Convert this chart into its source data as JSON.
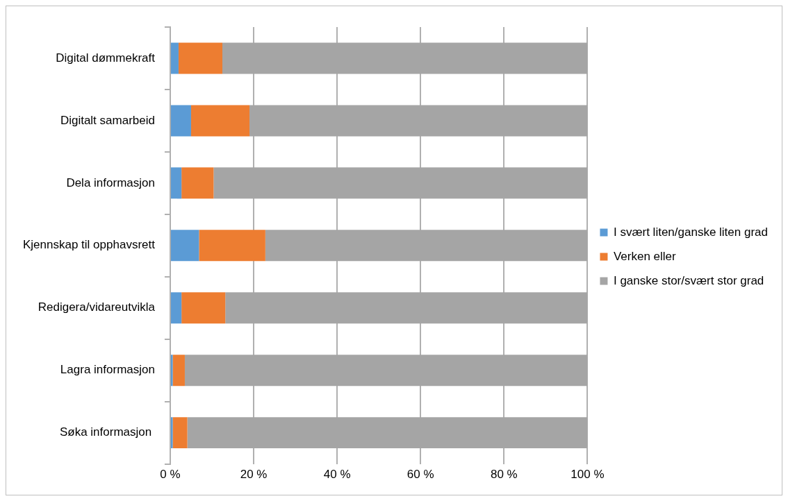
{
  "chart_data": {
    "type": "bar",
    "orientation": "horizontal",
    "stacked": true,
    "categories": [
      "Digital dømmekraft",
      "Digitalt samarbeid",
      "Dela informasjon",
      "Kjennskap til opphavsrett",
      "Redigera/vidareutvikla",
      "Lagra informasjon",
      "Søka informasjon "
    ],
    "series": [
      {
        "name": "I svært liten/ganske liten grad",
        "color": "#5b9bd5",
        "values": [
          2,
          5,
          2.7,
          6.9,
          2.7,
          0.6,
          0.6
        ]
      },
      {
        "name": "Verken eller",
        "color": "#ed7d31",
        "values": [
          10.5,
          14,
          7.7,
          15.9,
          10.5,
          2.9,
          3.5
        ]
      },
      {
        "name": "I ganske stor/svært stor grad",
        "color": "#a5a5a5",
        "values": [
          87.5,
          81,
          89.6,
          77.2,
          86.8,
          96.5,
          95.9
        ]
      }
    ],
    "xlim": [
      0,
      100
    ],
    "xticks": [
      {
        "value": 0,
        "label": "0 %"
      },
      {
        "value": 20,
        "label": "20 %"
      },
      {
        "value": 40,
        "label": "40 %"
      },
      {
        "value": 60,
        "label": "60 %"
      },
      {
        "value": 80,
        "label": "80 %"
      },
      {
        "value": 100,
        "label": "100 %"
      }
    ],
    "grid": "x",
    "legend": "right"
  }
}
